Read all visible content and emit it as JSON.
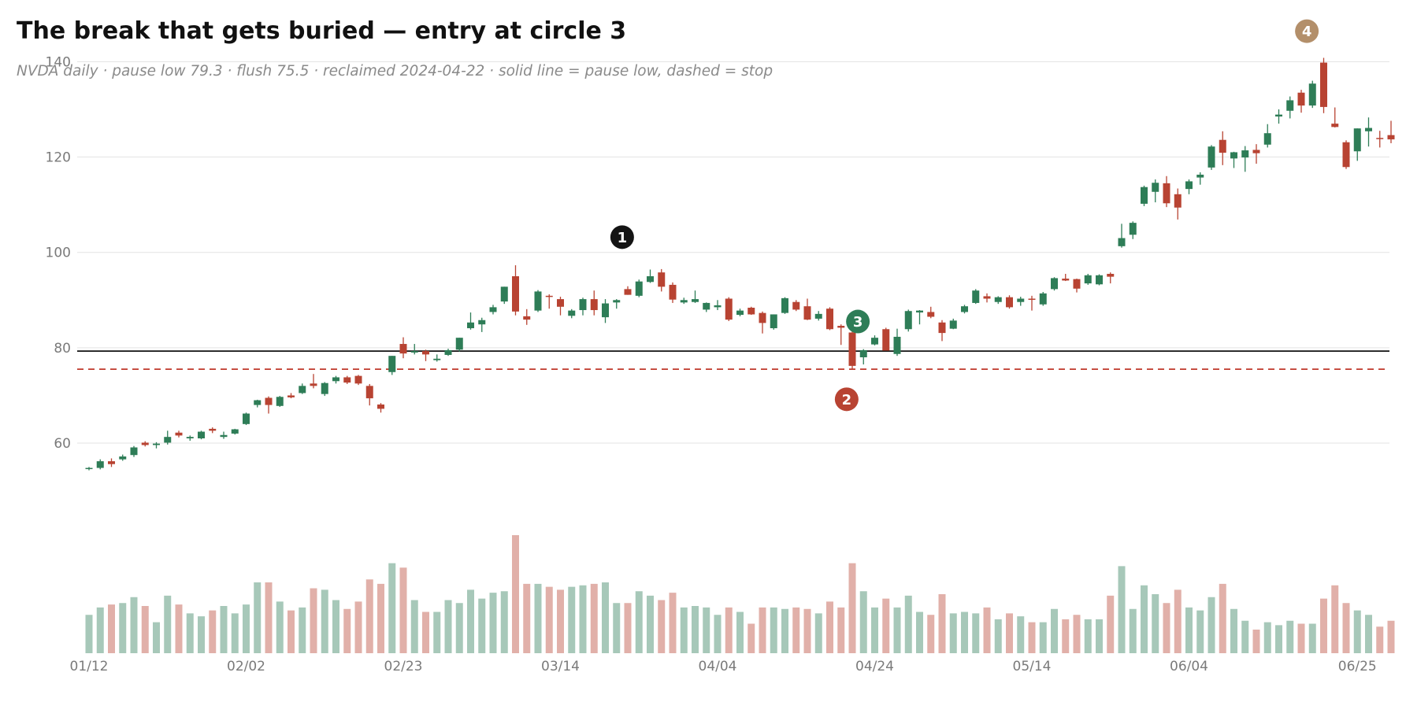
{
  "title": "The break that gets buried — entry at circle 3",
  "subtitle": "NVDA daily · pause low 79.3 · flush 75.5 · reclaimed 2024-04-22 · solid line = pause low, dashed = stop",
  "colors": {
    "up": "#2e7d57",
    "down": "#b84332",
    "grid": "#e3e3e3",
    "pause_line": "#111111",
    "stop_line": "#c0392b",
    "marker_1": "#141414",
    "marker_2": "#b84332",
    "marker_3": "#2e7d57",
    "marker_4": "#b38f6a"
  },
  "chart_data": {
    "type": "candlestick",
    "y_range": [
      44,
      146
    ],
    "y_ticks": [
      "60",
      "80",
      "100",
      "120",
      "140"
    ],
    "x_ticks": [
      {
        "index": 0,
        "label": "01/12"
      },
      {
        "index": 14,
        "label": "02/02"
      },
      {
        "index": 28,
        "label": "02/23"
      },
      {
        "index": 42,
        "label": "03/14"
      },
      {
        "index": 56,
        "label": "04/04"
      },
      {
        "index": 70,
        "label": "04/24"
      },
      {
        "index": 84,
        "label": "05/14"
      },
      {
        "index": 98,
        "label": "06/04"
      },
      {
        "index": 113,
        "label": "06/25"
      }
    ],
    "levels": {
      "pause_low": 79.3,
      "stop": 75.5
    },
    "ohlc": [
      [
        54.6,
        55.0,
        54.3,
        54.8
      ],
      [
        54.8,
        56.6,
        54.5,
        56.2
      ],
      [
        56.2,
        56.8,
        55.0,
        55.6
      ],
      [
        56.6,
        57.6,
        56.3,
        57.2
      ],
      [
        57.5,
        59.4,
        57.1,
        59.1
      ],
      [
        60.1,
        60.4,
        59.3,
        59.6
      ],
      [
        59.6,
        60.2,
        58.9,
        59.9
      ],
      [
        60.1,
        62.6,
        59.7,
        61.3
      ],
      [
        62.2,
        62.6,
        61.2,
        61.6
      ],
      [
        61.0,
        61.6,
        60.5,
        61.3
      ],
      [
        61.0,
        62.6,
        60.8,
        62.4
      ],
      [
        63.0,
        63.3,
        62.1,
        62.6
      ],
      [
        61.3,
        62.4,
        60.9,
        61.7
      ],
      [
        62.0,
        63.0,
        61.8,
        62.9
      ],
      [
        64.0,
        66.4,
        63.8,
        66.2
      ],
      [
        68.0,
        69.1,
        67.5,
        69.0
      ],
      [
        69.5,
        69.8,
        66.2,
        68.0
      ],
      [
        67.8,
        69.9,
        67.6,
        69.7
      ],
      [
        70.0,
        70.5,
        69.4,
        69.6
      ],
      [
        70.5,
        72.5,
        70.3,
        72.0
      ],
      [
        72.5,
        74.5,
        71.5,
        72.0
      ],
      [
        70.3,
        72.8,
        69.9,
        72.6
      ],
      [
        73.0,
        74.1,
        72.5,
        73.8
      ],
      [
        73.8,
        74.1,
        72.4,
        72.7
      ],
      [
        74.1,
        74.3,
        72.2,
        72.5
      ],
      [
        72.0,
        72.4,
        67.9,
        69.4
      ],
      [
        68.1,
        68.4,
        66.4,
        67.2
      ],
      [
        74.9,
        78.3,
        74.3,
        78.3
      ],
      [
        80.8,
        82.2,
        77.8,
        78.8
      ],
      [
        79.0,
        80.8,
        78.6,
        79.3
      ],
      [
        79.3,
        79.6,
        77.2,
        78.6
      ],
      [
        77.4,
        78.6,
        77.1,
        77.7
      ],
      [
        78.5,
        79.8,
        78.3,
        79.5
      ],
      [
        79.6,
        82.1,
        79.2,
        82.1
      ],
      [
        84.1,
        87.4,
        83.8,
        85.3
      ],
      [
        84.9,
        86.3,
        83.3,
        85.8
      ],
      [
        87.5,
        89.0,
        87.0,
        88.5
      ],
      [
        89.7,
        92.8,
        89.2,
        92.8
      ],
      [
        95.0,
        97.3,
        86.8,
        87.6
      ],
      [
        86.6,
        88.1,
        84.8,
        85.9
      ],
      [
        87.8,
        92.1,
        87.5,
        91.8
      ],
      [
        90.9,
        91.2,
        88.2,
        90.8
      ],
      [
        90.2,
        90.7,
        86.8,
        88.6
      ],
      [
        86.7,
        88.1,
        86.2,
        87.8
      ],
      [
        87.9,
        90.5,
        86.8,
        90.2
      ],
      [
        90.2,
        92.0,
        86.8,
        87.9
      ],
      [
        86.4,
        90.2,
        85.2,
        89.3
      ],
      [
        89.5,
        90.2,
        88.2,
        90.0
      ],
      [
        92.3,
        92.9,
        91.1,
        91.1
      ],
      [
        90.9,
        94.3,
        90.6,
        93.9
      ],
      [
        93.8,
        96.4,
        93.6,
        95.0
      ],
      [
        95.8,
        96.5,
        91.8,
        92.8
      ],
      [
        93.2,
        93.7,
        89.4,
        90.1
      ],
      [
        89.5,
        90.5,
        89.2,
        90.0
      ],
      [
        89.6,
        92.0,
        89.4,
        90.2
      ],
      [
        88.0,
        89.5,
        87.5,
        89.4
      ],
      [
        88.5,
        90.0,
        87.9,
        88.9
      ],
      [
        90.3,
        90.6,
        85.6,
        85.9
      ],
      [
        86.9,
        88.2,
        86.6,
        87.8
      ],
      [
        88.4,
        88.6,
        86.9,
        87.0
      ],
      [
        87.3,
        87.6,
        83.0,
        85.2
      ],
      [
        84.1,
        87.0,
        83.8,
        87.0
      ],
      [
        87.3,
        90.6,
        87.1,
        90.4
      ],
      [
        89.6,
        90.0,
        87.7,
        88.0
      ],
      [
        88.7,
        90.3,
        85.8,
        85.9
      ],
      [
        86.1,
        87.7,
        85.7,
        87.1
      ],
      [
        88.2,
        88.5,
        83.7,
        83.9
      ],
      [
        84.6,
        84.9,
        80.6,
        84.2
      ],
      [
        83.2,
        83.4,
        75.5,
        76.2
      ],
      [
        78.0,
        79.7,
        76.5,
        79.5
      ],
      [
        80.7,
        82.6,
        80.5,
        82.1
      ],
      [
        83.9,
        84.2,
        79.4,
        79.4
      ],
      [
        78.7,
        84.0,
        78.3,
        82.3
      ],
      [
        83.9,
        88.0,
        83.4,
        87.7
      ],
      [
        87.4,
        87.9,
        84.9,
        87.8
      ],
      [
        87.5,
        88.6,
        86.2,
        86.5
      ],
      [
        85.3,
        85.8,
        81.4,
        83.1
      ],
      [
        84.0,
        86.1,
        83.9,
        85.7
      ],
      [
        87.5,
        89.0,
        87.2,
        88.7
      ],
      [
        89.4,
        92.3,
        89.2,
        92.0
      ],
      [
        90.8,
        91.4,
        89.5,
        90.3
      ],
      [
        89.6,
        90.8,
        89.2,
        90.6
      ],
      [
        90.6,
        91.0,
        88.2,
        88.5
      ],
      [
        89.6,
        90.7,
        88.8,
        90.3
      ],
      [
        90.3,
        90.9,
        87.8,
        90.1
      ],
      [
        89.1,
        91.7,
        88.8,
        91.4
      ],
      [
        92.3,
        94.8,
        92.0,
        94.6
      ],
      [
        94.5,
        95.5,
        94.0,
        94.1
      ],
      [
        94.4,
        94.5,
        91.6,
        92.4
      ],
      [
        93.5,
        95.5,
        93.2,
        95.2
      ],
      [
        93.3,
        95.4,
        93.1,
        95.2
      ],
      [
        95.5,
        95.8,
        93.5,
        94.9
      ],
      [
        101.3,
        106.0,
        101.0,
        103.0
      ],
      [
        103.7,
        106.5,
        102.8,
        106.2
      ],
      [
        110.2,
        114.0,
        109.7,
        113.7
      ],
      [
        112.7,
        115.3,
        110.5,
        114.6
      ],
      [
        114.5,
        116.0,
        109.5,
        110.3
      ],
      [
        112.2,
        113.4,
        106.9,
        109.4
      ],
      [
        113.3,
        115.3,
        112.2,
        114.9
      ],
      [
        115.7,
        116.8,
        114.2,
        116.3
      ],
      [
        117.8,
        122.5,
        117.3,
        122.2
      ],
      [
        123.6,
        125.4,
        118.3,
        120.9
      ],
      [
        119.7,
        121.1,
        117.7,
        121.0
      ],
      [
        119.9,
        122.3,
        116.9,
        121.4
      ],
      [
        121.5,
        122.7,
        118.6,
        120.8
      ],
      [
        122.6,
        126.9,
        122.0,
        125.0
      ],
      [
        128.5,
        130.0,
        127.0,
        128.9
      ],
      [
        129.7,
        132.7,
        128.1,
        131.9
      ],
      [
        133.5,
        134.1,
        129.3,
        130.8
      ],
      [
        130.8,
        136.0,
        130.3,
        135.4
      ],
      [
        139.8,
        140.8,
        129.2,
        130.5
      ],
      [
        127.0,
        130.4,
        126.2,
        126.3
      ],
      [
        123.1,
        123.5,
        117.5,
        117.9
      ],
      [
        121.2,
        126.0,
        119.2,
        126.0
      ],
      [
        125.4,
        128.3,
        122.2,
        126.1
      ],
      [
        124.0,
        125.5,
        122.0,
        123.8
      ],
      [
        124.6,
        127.6,
        122.9,
        123.7
      ]
    ],
    "volume": [
      26,
      31,
      33,
      34,
      38,
      32,
      21,
      39,
      33,
      27,
      25,
      29,
      32,
      27,
      33,
      48,
      48,
      35,
      29,
      31,
      44,
      43,
      36,
      30,
      35,
      50,
      47,
      61,
      58,
      36,
      28,
      28,
      36,
      34,
      43,
      37,
      41,
      42,
      80,
      47,
      47,
      45,
      43,
      45,
      46,
      47,
      48,
      34,
      34,
      42,
      39,
      36,
      41,
      31,
      32,
      31,
      26,
      31,
      28,
      20,
      31,
      31,
      30,
      31,
      30,
      27,
      35,
      31,
      61,
      42,
      31,
      37,
      31,
      39,
      28,
      26,
      40,
      27,
      28,
      27,
      31,
      23,
      27,
      25,
      21,
      21,
      30,
      23,
      26,
      23,
      23,
      39,
      59,
      30,
      46,
      40,
      34,
      43,
      31,
      29,
      38,
      47,
      30,
      22,
      16,
      21,
      19,
      22,
      20,
      20,
      37,
      46,
      34,
      29,
      26,
      18,
      22
    ]
  },
  "annotations": [
    {
      "label": "1",
      "index": 47.5,
      "y": 103.2
    },
    {
      "label": "2",
      "index": 67.5,
      "y": 69.2
    },
    {
      "label": "3",
      "index": 68.5,
      "y": 85.5
    },
    {
      "label": "4",
      "index": 108.5,
      "y": 146.4
    }
  ]
}
